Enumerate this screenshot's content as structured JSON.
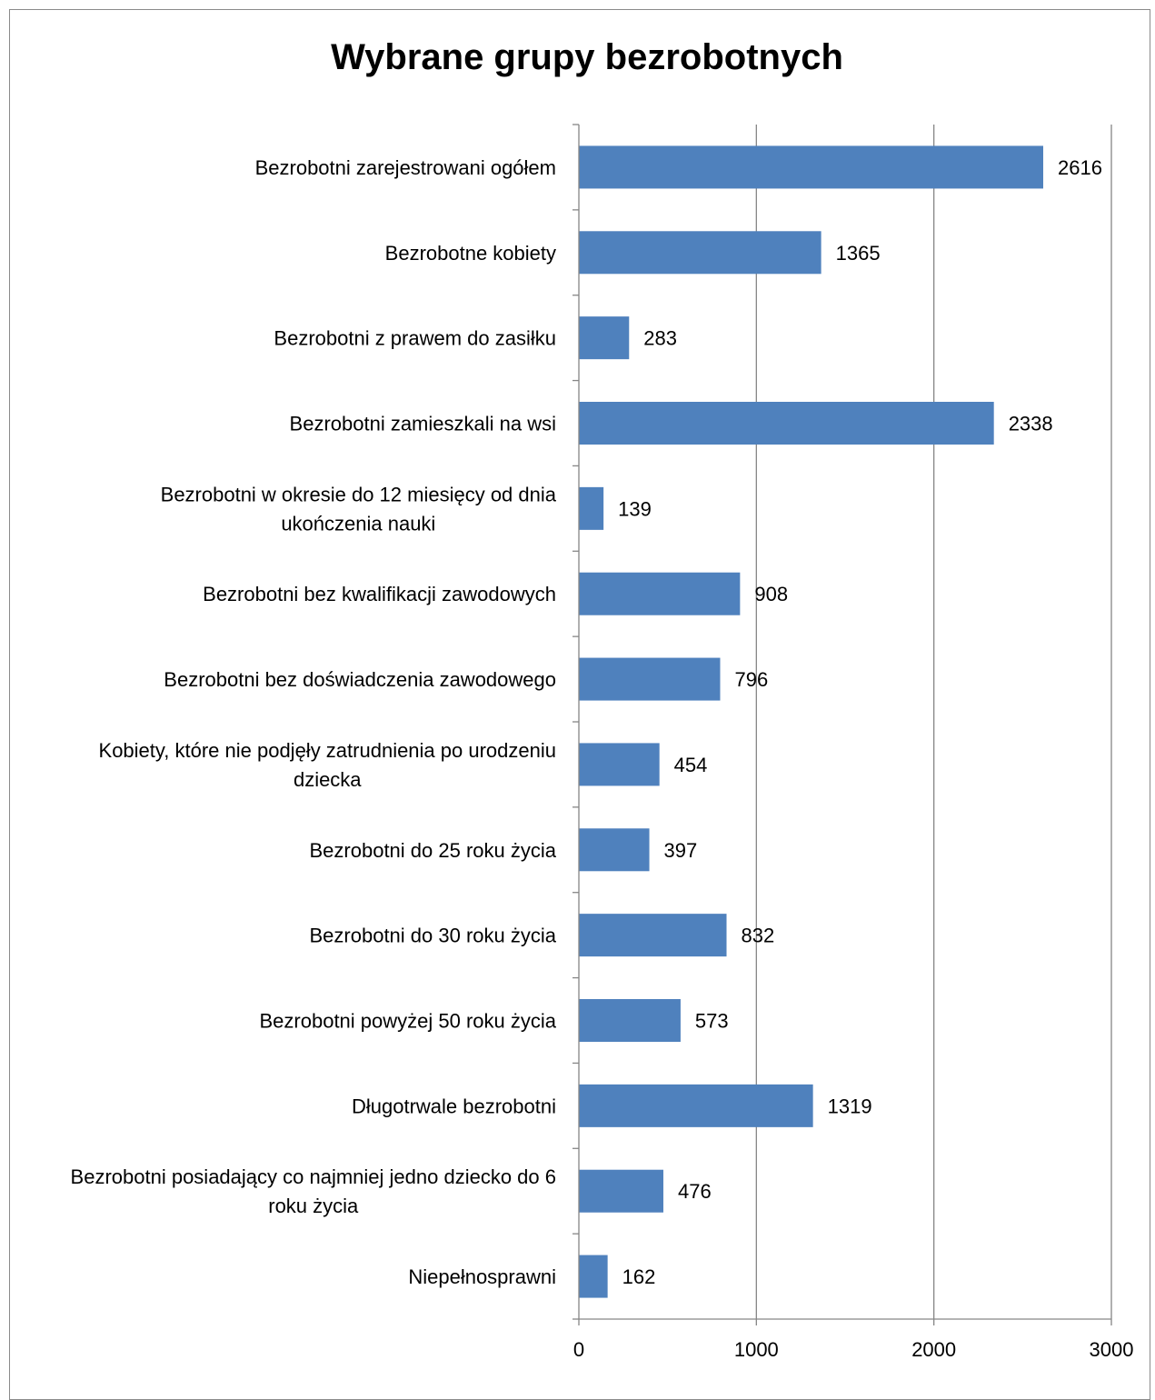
{
  "chart_data": {
    "type": "bar",
    "orientation": "horizontal",
    "title": "Wybrane grupy bezrobotnych",
    "categories": [
      [
        "Bezrobotni zarejestrowani ogółem"
      ],
      [
        "Bezrobotne kobiety"
      ],
      [
        "Bezrobotni z prawem do zasiłku"
      ],
      [
        "Bezrobotni zamieszkali na wsi"
      ],
      [
        "Bezrobotni w okresie do 12 miesięcy od dnia",
        "ukończenia nauki"
      ],
      [
        "Bezrobotni bez kwalifikacji zawodowych"
      ],
      [
        "Bezrobotni bez doświadczenia zawodowego"
      ],
      [
        "Kobiety, które nie podjęły zatrudnienia po urodzeniu",
        "dziecka"
      ],
      [
        "Bezrobotni do 25 roku życia"
      ],
      [
        "Bezrobotni do 30 roku życia"
      ],
      [
        "Bezrobotni powyżej 50 roku życia"
      ],
      [
        "Długotrwale bezrobotni"
      ],
      [
        "Bezrobotni posiadający co najmniej jedno dziecko do 6",
        "roku życia"
      ],
      [
        "Niepełnosprawni"
      ]
    ],
    "values": [
      2616,
      1365,
      283,
      2338,
      139,
      908,
      796,
      454,
      397,
      832,
      573,
      1319,
      476,
      162
    ],
    "xlim": [
      0,
      3000
    ],
    "xticks": [
      "0",
      "1000",
      "2000",
      "3000"
    ],
    "grid": true,
    "data_labels": true,
    "colors": {
      "bar": "#4f81bd",
      "grid": "#868686",
      "axis": "#868686",
      "frame": "#8a8a8a"
    }
  }
}
